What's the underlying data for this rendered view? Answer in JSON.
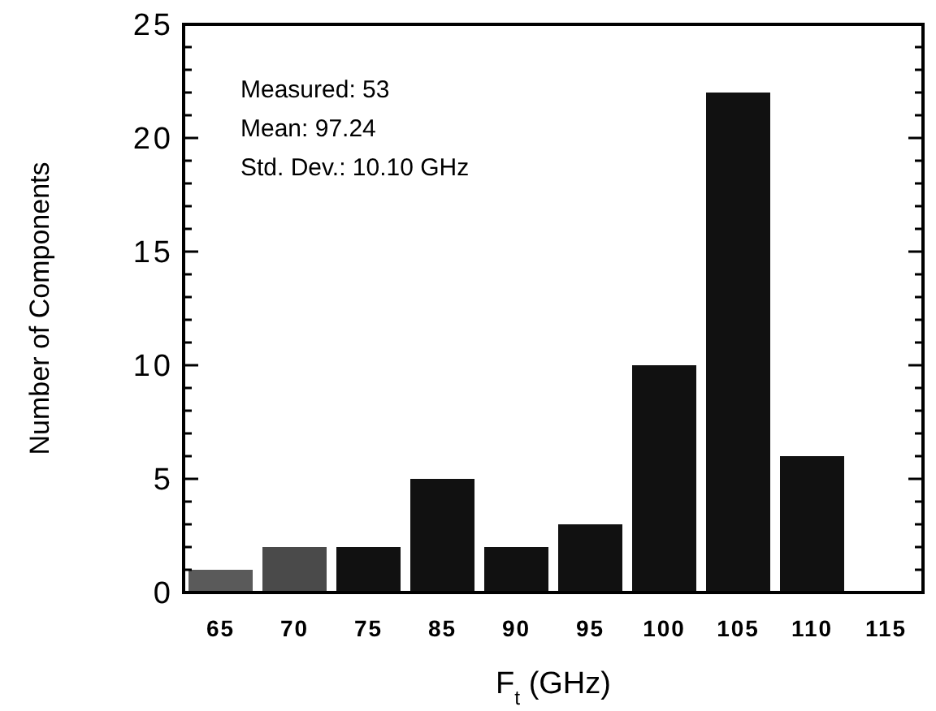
{
  "chart_data": {
    "type": "bar",
    "xlabel": "F$_{t}$ (GHz)",
    "ylabel": "Number of Components",
    "categories": [
      "65",
      "70",
      "75",
      "85",
      "90",
      "95",
      "100",
      "105",
      "110",
      "115"
    ],
    "values": [
      1,
      2,
      2,
      5,
      2,
      3,
      10,
      22,
      6,
      0
    ],
    "colors": [
      "#5a5a5a",
      "#4a4a4a",
      "#111111",
      "#111111",
      "#111111",
      "#111111",
      "#111111",
      "#111111",
      "#111111",
      "#111111"
    ],
    "ylim": [
      0,
      25
    ],
    "yticks": [
      0,
      {
        "value": 1,
        "label": null
      },
      {
        "value": 2,
        "label": null
      },
      {
        "value": 3,
        "label": null
      },
      {
        "value": 4,
        "label": null
      },
      5,
      {
        "value": 6,
        "label": null
      },
      {
        "value": 7,
        "label": null
      },
      {
        "value": 8,
        "label": null
      },
      {
        "value": 9,
        "label": null
      },
      10,
      {
        "value": 11,
        "label": null
      },
      {
        "value": 12,
        "label": null
      },
      {
        "value": 13,
        "label": null
      },
      {
        "value": 14,
        "label": null
      },
      15,
      {
        "value": 16,
        "label": null
      },
      {
        "value": 17,
        "label": null
      },
      {
        "value": 18,
        "label": null
      },
      {
        "value": 19,
        "label": null
      },
      20,
      {
        "value": 21,
        "label": null
      },
      {
        "value": 22,
        "label": null
      },
      {
        "value": 23,
        "label": null
      },
      {
        "value": 24,
        "label": null
      },
      25
    ],
    "annotations": [
      "Measured: 53",
      "Mean: 97.24",
      "Std. Dev.: 10.10 GHz"
    ]
  }
}
